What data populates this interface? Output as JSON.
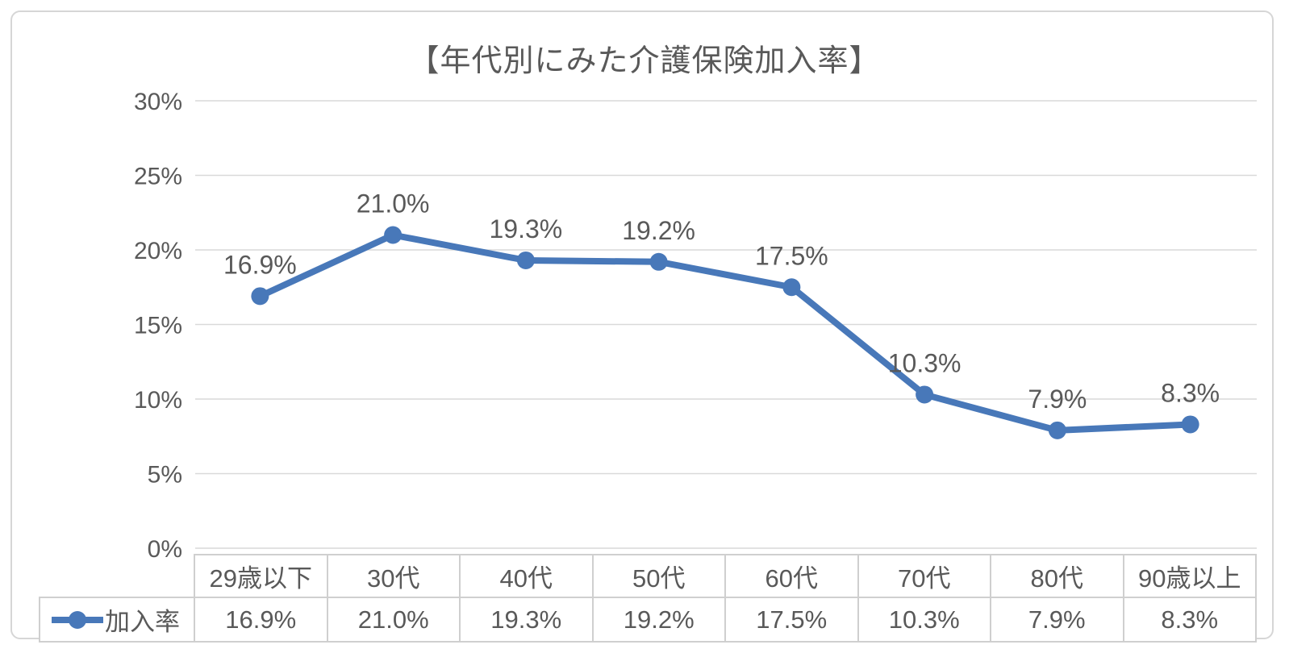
{
  "chart_data": {
    "type": "line",
    "title": "【年代別にみた介護保険加入率】",
    "categories": [
      "29歳以下",
      "30代",
      "40代",
      "50代",
      "60代",
      "70代",
      "80代",
      "90歳以上"
    ],
    "series": [
      {
        "name": "加入率",
        "values": [
          16.9,
          21.0,
          19.3,
          19.2,
          17.5,
          10.3,
          7.9,
          8.3
        ],
        "labels": [
          "16.9%",
          "21.0%",
          "19.3%",
          "19.2%",
          "17.5%",
          "10.3%",
          "7.9%",
          "8.3%"
        ]
      }
    ],
    "y_axis": {
      "tick_labels": [
        "0%",
        "5%",
        "10%",
        "15%",
        "20%",
        "25%",
        "30%"
      ],
      "min": 0,
      "max": 30,
      "step": 5
    },
    "grid": true,
    "legend_position": "data-table-left",
    "data_table_shown": true,
    "colors": {
      "line": "#4878b9",
      "marker": "#4878b9",
      "text": "#595959",
      "gridline": "#d9d9d9",
      "table_border": "#cfcfcf",
      "frame_border": "#d6d6d6",
      "background": "#ffffff"
    }
  }
}
